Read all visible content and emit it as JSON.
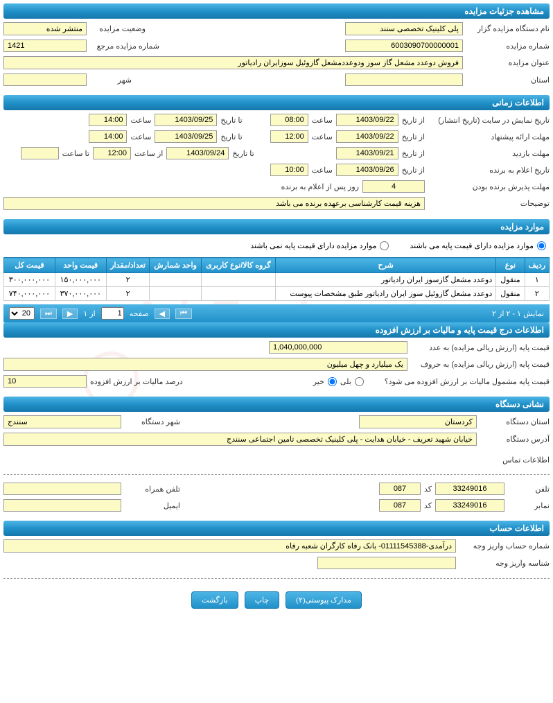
{
  "sections": {
    "details": "مشاهده جزئیات مزایده",
    "timing": "اطلاعات زمانی",
    "items": "موارد مزایده",
    "pricing": "اطلاعات درج قیمت پایه و مالیات بر ارزش افزوده",
    "org": "نشانی دستگاه",
    "account": "اطلاعات حساب"
  },
  "details": {
    "agency_label": "نام دستگاه مزایده گزار",
    "agency": "پلی کلینیک تخصصی سنند",
    "status_label": "وضعیت مزایده",
    "status": "منتشر شده",
    "number_label": "شماره مزایده",
    "number": "6003090700000001",
    "ref_label": "شماره مزایده مرجع",
    "ref": "1421",
    "title_label": "عنوان مزایده",
    "title": "فروش دوعدد مشعل گاز سوز ودوعددمشعل گازوئیل سوزایران رادیاتور",
    "province_label": "استان",
    "province": "",
    "city_label": "شهر",
    "city": ""
  },
  "timing": {
    "publish_label": "تاریخ نمایش در سایت (تاریخ انتشار)",
    "offer_label": "مهلت ارائه پیشنهاد",
    "visit_label": "مهلت بازدید",
    "announce_label": "تاریخ اعلام به برنده",
    "accept_label": "مهلت پذیرش برنده بودن",
    "from_date": "از تاریخ",
    "to_date": "تا تاریخ",
    "hour": "ساعت",
    "from_hour": "از ساعت",
    "to_hour": "تا ساعت",
    "days_after": "روز پس از اعلام به برنده",
    "notes_label": "توضیحات",
    "publish_from": "1403/09/22",
    "publish_from_h": "08:00",
    "publish_to": "1403/09/25",
    "publish_to_h": "14:00",
    "offer_from": "1403/09/22",
    "offer_from_h": "12:00",
    "offer_to": "1403/09/25",
    "offer_to_h": "14:00",
    "visit_from": "1403/09/21",
    "visit_to": "1403/09/24",
    "visit_h_from": "12:00",
    "visit_h_to": "",
    "announce_from": "1403/09/26",
    "announce_h": "10:00",
    "accept_days": "4",
    "notes": "هزینه قیمت کارشناسی برعهده برنده می باشد"
  },
  "items_block": {
    "has_base_yes": "موارد مزایده دارای قیمت پایه می باشند",
    "has_base_no": "موارد مزایده دارای قیمت پایه نمی باشند",
    "selected": "yes",
    "columns": [
      "ردیف",
      "نوع",
      "شرح",
      "گروه کالا/نوع کاربری",
      "واحد شمارش",
      "تعداد/مقدار",
      "قیمت واحد",
      "قیمت کل"
    ],
    "rows": [
      {
        "idx": "۱",
        "type": "منقول",
        "desc": "دوعدد مشعل گازسوز ایران رادیاتور",
        "group": "",
        "unit": "",
        "qty": "۲",
        "unit_price": "۱۵۰,۰۰۰,۰۰۰",
        "total": "۳۰۰,۰۰۰,۰۰۰"
      },
      {
        "idx": "۲",
        "type": "منقول",
        "desc": "دوعدد مشعل گازوئیل سوز ایران رادیاتور طبق مشخصات پیوست",
        "group": "",
        "unit": "",
        "qty": "۲",
        "unit_price": "۳۷۰,۰۰۰,۰۰۰",
        "total": "۷۴۰,۰۰۰,۰۰۰"
      }
    ],
    "pager_text": "نمایش ۱ - ۲ از ۲",
    "page_label": "صفحه",
    "page_of": "از ۱",
    "page_num": "1",
    "page_size": "20"
  },
  "pricing": {
    "base_num_label": "قیمت پایه (ارزش ریالی مزایده) به عدد",
    "base_num": "1,040,000,000",
    "base_text_label": "قیمت پایه (ارزش ریالی مزایده) به حروف",
    "base_text": "یک میلیارد و چهل میلیون",
    "vat_q": "قیمت پایه مشمول مالیات بر ارزش افزوده می شود؟",
    "yes": "بلی",
    "no": "خیر",
    "vat_selected": "no",
    "vat_pct_label": "درصد مالیات بر ارزش افزوده",
    "vat_pct": "10"
  },
  "org": {
    "province_label": "استان دستگاه",
    "province": "کردستان",
    "city_label": "شهر دستگاه",
    "city": "سنندج",
    "address_label": "آدرس دستگاه",
    "address": "خیابان شهید تعریف - خیابان هدایت - پلی کلینیک تخصصی تامین اجتماعی سنندج",
    "contact_header": "اطلاعات تماس",
    "phone_label": "تلفن",
    "phone": "33249016",
    "phone_code": "087",
    "code_label": "کد",
    "fax_label": "نمابر",
    "fax": "33249016",
    "fax_code": "087",
    "mobile_label": "تلفن همراه",
    "mobile": "",
    "email_label": "ایمیل",
    "email": ""
  },
  "account": {
    "deposit_label": "شماره حساب واریز وجه",
    "deposit": "درآمدی-01111545388- بانک رفاه کارگران شعبه رفاه",
    "id_label": "شناسه واریز وجه",
    "id": ""
  },
  "buttons": {
    "attachments": "مدارک پیوستی(۲)",
    "print": "چاپ",
    "back": "بازگشت"
  },
  "colors": {
    "header_grad_top": "#4db5e5",
    "header_grad_bot": "#1577ab",
    "field_bg": "#fcfbc5"
  }
}
